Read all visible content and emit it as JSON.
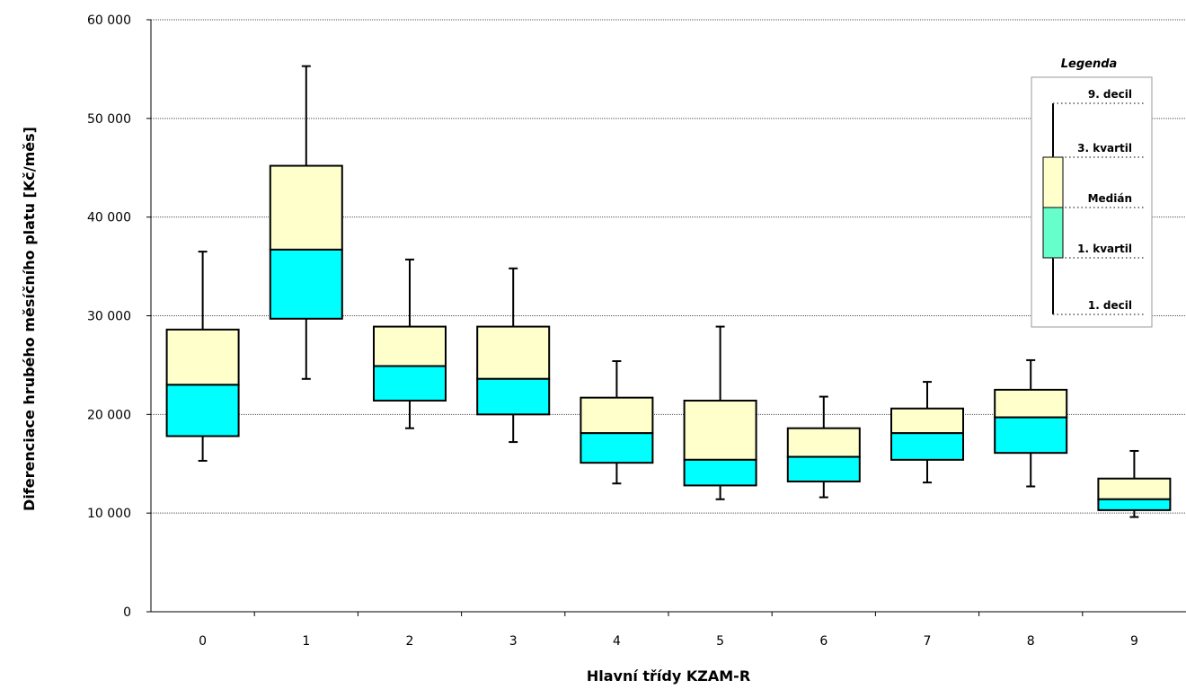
{
  "chart_data": {
    "type": "boxplot",
    "xlabel": "Hlavní třídy KZAM-R",
    "ylabel": "Diferenciace hrubého měsíčního platu [Kč/měs]",
    "ylim": [
      0,
      60000
    ],
    "y_ticks": [
      0,
      10000,
      20000,
      30000,
      40000,
      50000,
      60000
    ],
    "y_tick_labels": [
      "0",
      "10 000",
      "20 000",
      "30 000",
      "40 000",
      "50 000",
      "60 000"
    ],
    "grid": "horizontal dotted",
    "categories": [
      "0",
      "1",
      "2",
      "3",
      "4",
      "5",
      "6",
      "7",
      "8",
      "9"
    ],
    "decile1": [
      15300,
      23600,
      18600,
      17200,
      13000,
      11400,
      11600,
      13100,
      12700,
      9600
    ],
    "quartile1": [
      17800,
      29700,
      21400,
      20000,
      15100,
      12800,
      13200,
      15400,
      16100,
      10300
    ],
    "median": [
      23000,
      36700,
      24900,
      23600,
      18100,
      15400,
      15700,
      18100,
      19700,
      11400
    ],
    "quartile3": [
      28600,
      45200,
      28900,
      28900,
      21700,
      21400,
      18600,
      20600,
      22500,
      13500
    ],
    "decile9": [
      36500,
      55300,
      35700,
      34800,
      25400,
      28900,
      21800,
      23300,
      25500,
      16300
    ],
    "colors": {
      "upper_box": "#ffffcc",
      "lower_box": "#00ffff",
      "legend_lower_box": "#66ffcc"
    },
    "legend": {
      "title": "Legenda",
      "position": "top-right",
      "labels": [
        "9. decil",
        "3. kvartil",
        "Medián",
        "1. kvartil",
        "1. decil"
      ]
    }
  }
}
